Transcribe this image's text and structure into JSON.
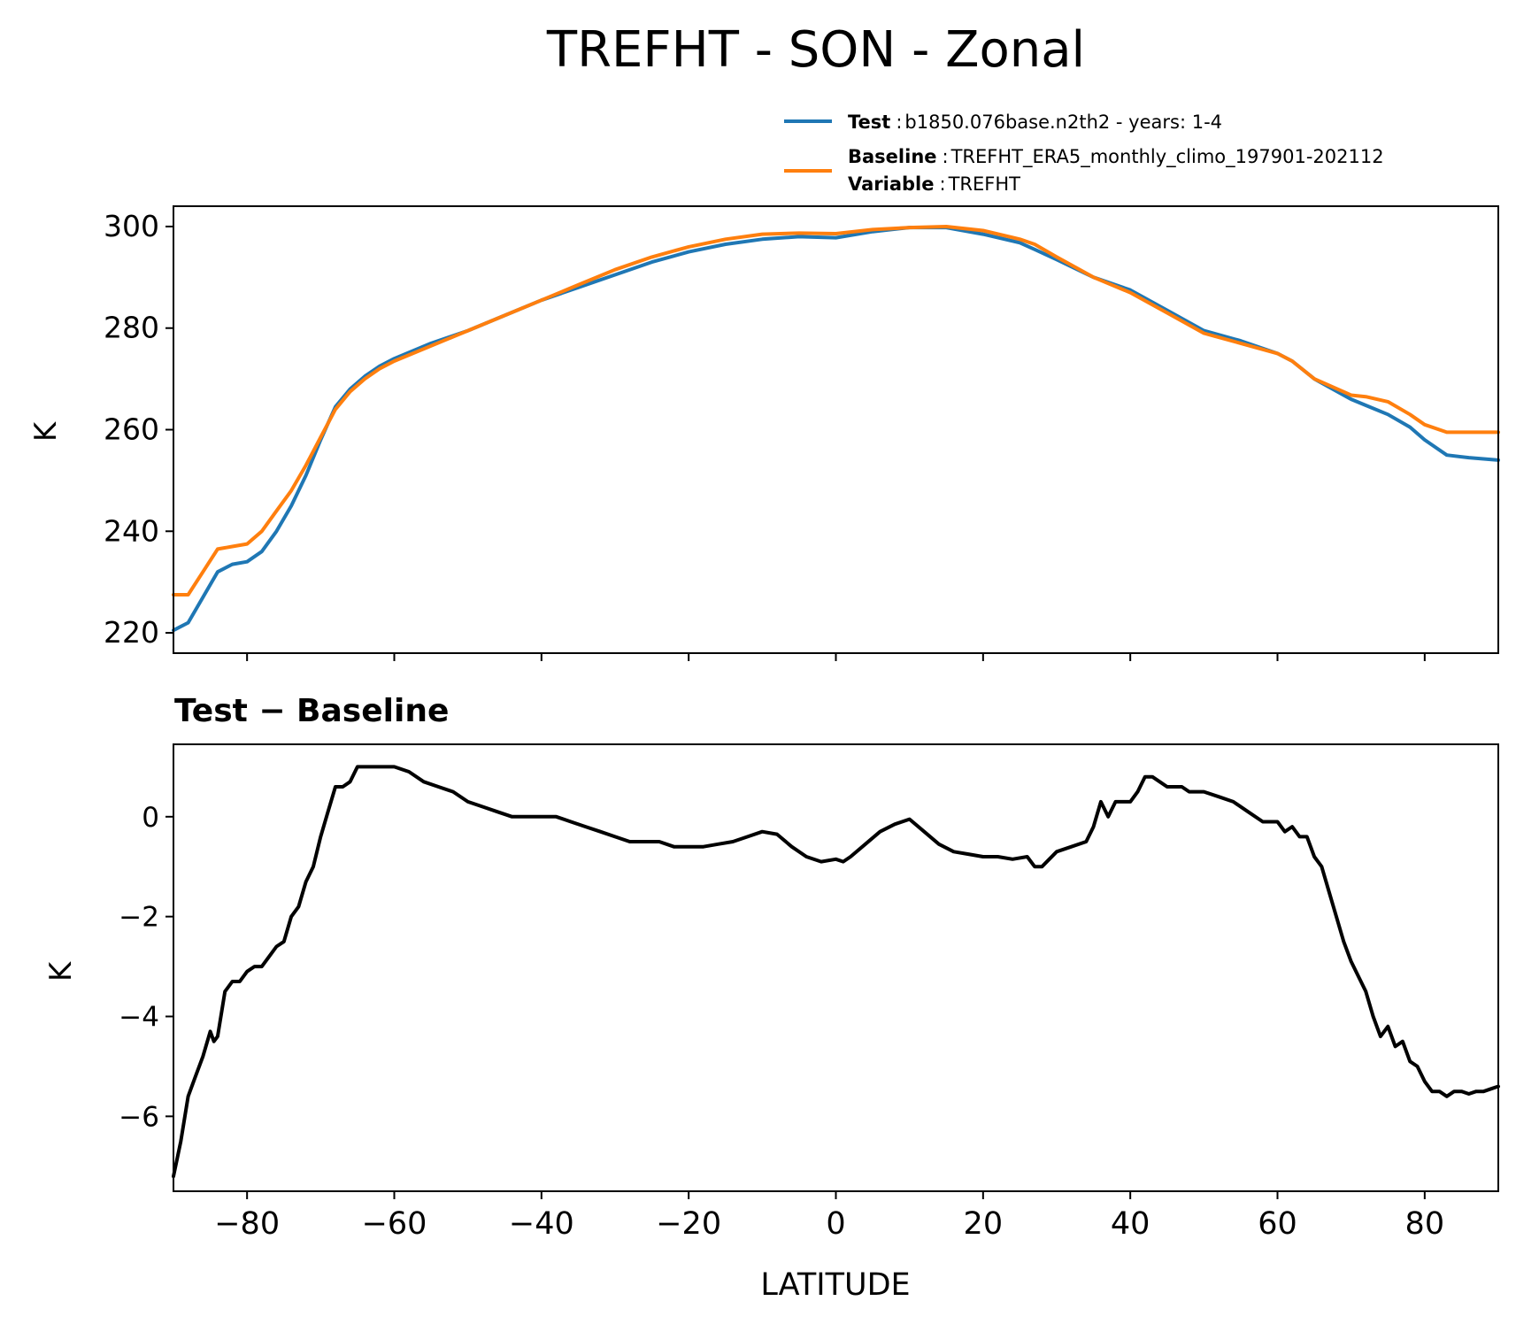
{
  "chart_data": [
    {
      "type": "line",
      "title": "TREFHT - SON - Zonal",
      "xlabel": "",
      "ylabel": "K",
      "xlim": [
        -90,
        90
      ],
      "ylim": [
        216,
        304
      ],
      "yticks": [
        220,
        240,
        260,
        280,
        300
      ],
      "xticks": [
        -80,
        -60,
        -40,
        -20,
        0,
        20,
        40,
        60,
        80
      ],
      "legend": {
        "placement": "above-right",
        "entries": [
          {
            "key": "Test",
            "text": "b1850.076base.n2th2 - years: 1-4"
          },
          {
            "key": "Baseline",
            "text": "TREFHT_ERA5_monthly_climo_197901-202112"
          },
          {
            "key": "Variable",
            "text": "TREFHT"
          }
        ]
      },
      "series": [
        {
          "name": "Test",
          "color": "#1f77b4",
          "x": [
            -90,
            -88,
            -86,
            -84,
            -82,
            -80,
            -78,
            -76,
            -74,
            -72,
            -70,
            -68,
            -66,
            -64,
            -62,
            -60,
            -55,
            -50,
            -45,
            -40,
            -35,
            -30,
            -25,
            -20,
            -15,
            -10,
            -5,
            0,
            5,
            10,
            15,
            20,
            25,
            27,
            30,
            35,
            40,
            45,
            50,
            55,
            60,
            62,
            65,
            70,
            72,
            75,
            78,
            80,
            83,
            86,
            90
          ],
          "values": [
            220.5,
            222.0,
            227.0,
            232.0,
            233.5,
            234.0,
            236.0,
            240.0,
            245.0,
            251.0,
            258.0,
            264.5,
            268.0,
            270.5,
            272.5,
            274.0,
            277.0,
            279.5,
            282.5,
            285.5,
            288.0,
            290.5,
            293.0,
            295.0,
            296.5,
            297.5,
            298.0,
            297.8,
            299.0,
            299.8,
            299.8,
            298.5,
            296.8,
            295.5,
            293.5,
            290.0,
            287.5,
            283.5,
            279.5,
            277.5,
            275.0,
            273.5,
            270.0,
            266.0,
            264.8,
            263.0,
            260.5,
            258.0,
            255.0,
            254.5,
            254.0
          ]
        },
        {
          "name": "Baseline",
          "color": "#ff7f0e",
          "x": [
            -90,
            -88,
            -86,
            -84,
            -82,
            -80,
            -78,
            -76,
            -74,
            -72,
            -70,
            -68,
            -66,
            -64,
            -62,
            -60,
            -55,
            -50,
            -45,
            -40,
            -35,
            -30,
            -25,
            -20,
            -15,
            -10,
            -5,
            0,
            5,
            10,
            15,
            20,
            25,
            27,
            30,
            35,
            40,
            45,
            50,
            55,
            60,
            62,
            65,
            70,
            72,
            75,
            78,
            80,
            83,
            86,
            90
          ],
          "values": [
            227.5,
            227.5,
            232.0,
            236.5,
            237.0,
            237.5,
            240.0,
            244.0,
            248.0,
            253.0,
            258.5,
            264.0,
            267.5,
            270.0,
            272.0,
            273.5,
            276.5,
            279.5,
            282.5,
            285.5,
            288.5,
            291.5,
            294.0,
            296.0,
            297.5,
            298.5,
            298.7,
            298.6,
            299.4,
            299.8,
            300.0,
            299.2,
            297.5,
            296.5,
            294.0,
            290.0,
            287.0,
            283.0,
            279.0,
            277.0,
            275.0,
            273.5,
            270.0,
            266.8,
            266.5,
            265.5,
            263.0,
            261.0,
            259.5,
            259.5,
            259.5
          ]
        }
      ]
    },
    {
      "type": "line",
      "title": "Test − Baseline",
      "xlabel": "LATITUDE",
      "ylabel": "K",
      "xlim": [
        -90,
        90
      ],
      "ylim": [
        -7.5,
        1.45
      ],
      "yticks": [
        -6,
        -4,
        -2,
        0
      ],
      "ytick_labels": [
        "−6",
        "−4",
        "−2",
        "0"
      ],
      "xticks": [
        -80,
        -60,
        -40,
        -20,
        0,
        20,
        40,
        60,
        80
      ],
      "xtick_labels": [
        "−80",
        "−60",
        "−40",
        "−20",
        "0",
        "20",
        "40",
        "60",
        "80"
      ],
      "series": [
        {
          "name": "Test - Baseline",
          "color": "#000000",
          "x": [
            -90,
            -89,
            -88,
            -87,
            -86,
            -85,
            -84.5,
            -84,
            -83,
            -82,
            -81,
            -80,
            -79,
            -78,
            -77,
            -76,
            -75,
            -74,
            -73,
            -72,
            -71,
            -70,
            -69,
            -68,
            -67,
            -66,
            -65,
            -64,
            -62,
            -60,
            -58,
            -56,
            -54,
            -52,
            -50,
            -48,
            -46,
            -44,
            -42,
            -40,
            -38,
            -36,
            -34,
            -32,
            -30,
            -28,
            -26,
            -24,
            -22,
            -20,
            -18,
            -16,
            -14,
            -12,
            -10,
            -8,
            -6,
            -4,
            -2,
            0,
            1,
            2,
            4,
            6,
            8,
            10,
            12,
            14,
            16,
            18,
            20,
            22,
            24,
            26,
            27,
            28,
            30,
            32,
            34,
            35,
            36,
            37,
            38,
            39,
            40,
            41,
            42,
            43,
            44,
            45,
            46,
            47,
            48,
            50,
            52,
            54,
            56,
            58,
            60,
            61,
            62,
            63,
            64,
            65,
            66,
            67,
            68,
            69,
            70,
            71,
            72,
            73,
            74,
            75,
            76,
            77,
            78,
            79,
            80,
            81,
            82,
            83,
            84,
            85,
            86,
            87,
            88,
            89,
            90
          ],
          "values": [
            -7.2,
            -6.5,
            -5.6,
            -5.2,
            -4.8,
            -4.3,
            -4.5,
            -4.4,
            -3.5,
            -3.3,
            -3.3,
            -3.1,
            -3.0,
            -3.0,
            -2.8,
            -2.6,
            -2.5,
            -2.0,
            -1.8,
            -1.3,
            -1.0,
            -0.4,
            0.1,
            0.6,
            0.6,
            0.7,
            1.0,
            1.0,
            1.0,
            1.0,
            0.9,
            0.7,
            0.6,
            0.5,
            0.3,
            0.2,
            0.1,
            0.0,
            0.0,
            0.0,
            0.0,
            -0.1,
            -0.2,
            -0.3,
            -0.4,
            -0.5,
            -0.5,
            -0.5,
            -0.6,
            -0.6,
            -0.6,
            -0.55,
            -0.5,
            -0.4,
            -0.3,
            -0.35,
            -0.6,
            -0.8,
            -0.9,
            -0.85,
            -0.9,
            -0.8,
            -0.55,
            -0.3,
            -0.15,
            -0.05,
            -0.3,
            -0.55,
            -0.7,
            -0.75,
            -0.8,
            -0.8,
            -0.85,
            -0.8,
            -1.0,
            -1.0,
            -0.7,
            -0.6,
            -0.5,
            -0.2,
            0.3,
            0.0,
            0.3,
            0.3,
            0.3,
            0.5,
            0.8,
            0.8,
            0.7,
            0.6,
            0.6,
            0.6,
            0.5,
            0.5,
            0.4,
            0.3,
            0.1,
            -0.1,
            -0.1,
            -0.3,
            -0.2,
            -0.4,
            -0.4,
            -0.8,
            -1.0,
            -1.5,
            -2.0,
            -2.5,
            -2.9,
            -3.2,
            -3.5,
            -4.0,
            -4.4,
            -4.2,
            -4.6,
            -4.5,
            -4.9,
            -5.0,
            -5.3,
            -5.5,
            -5.5,
            -5.6,
            -5.5,
            -5.5,
            -5.55,
            -5.5,
            -5.5,
            -5.45,
            -5.4
          ]
        }
      ]
    }
  ]
}
